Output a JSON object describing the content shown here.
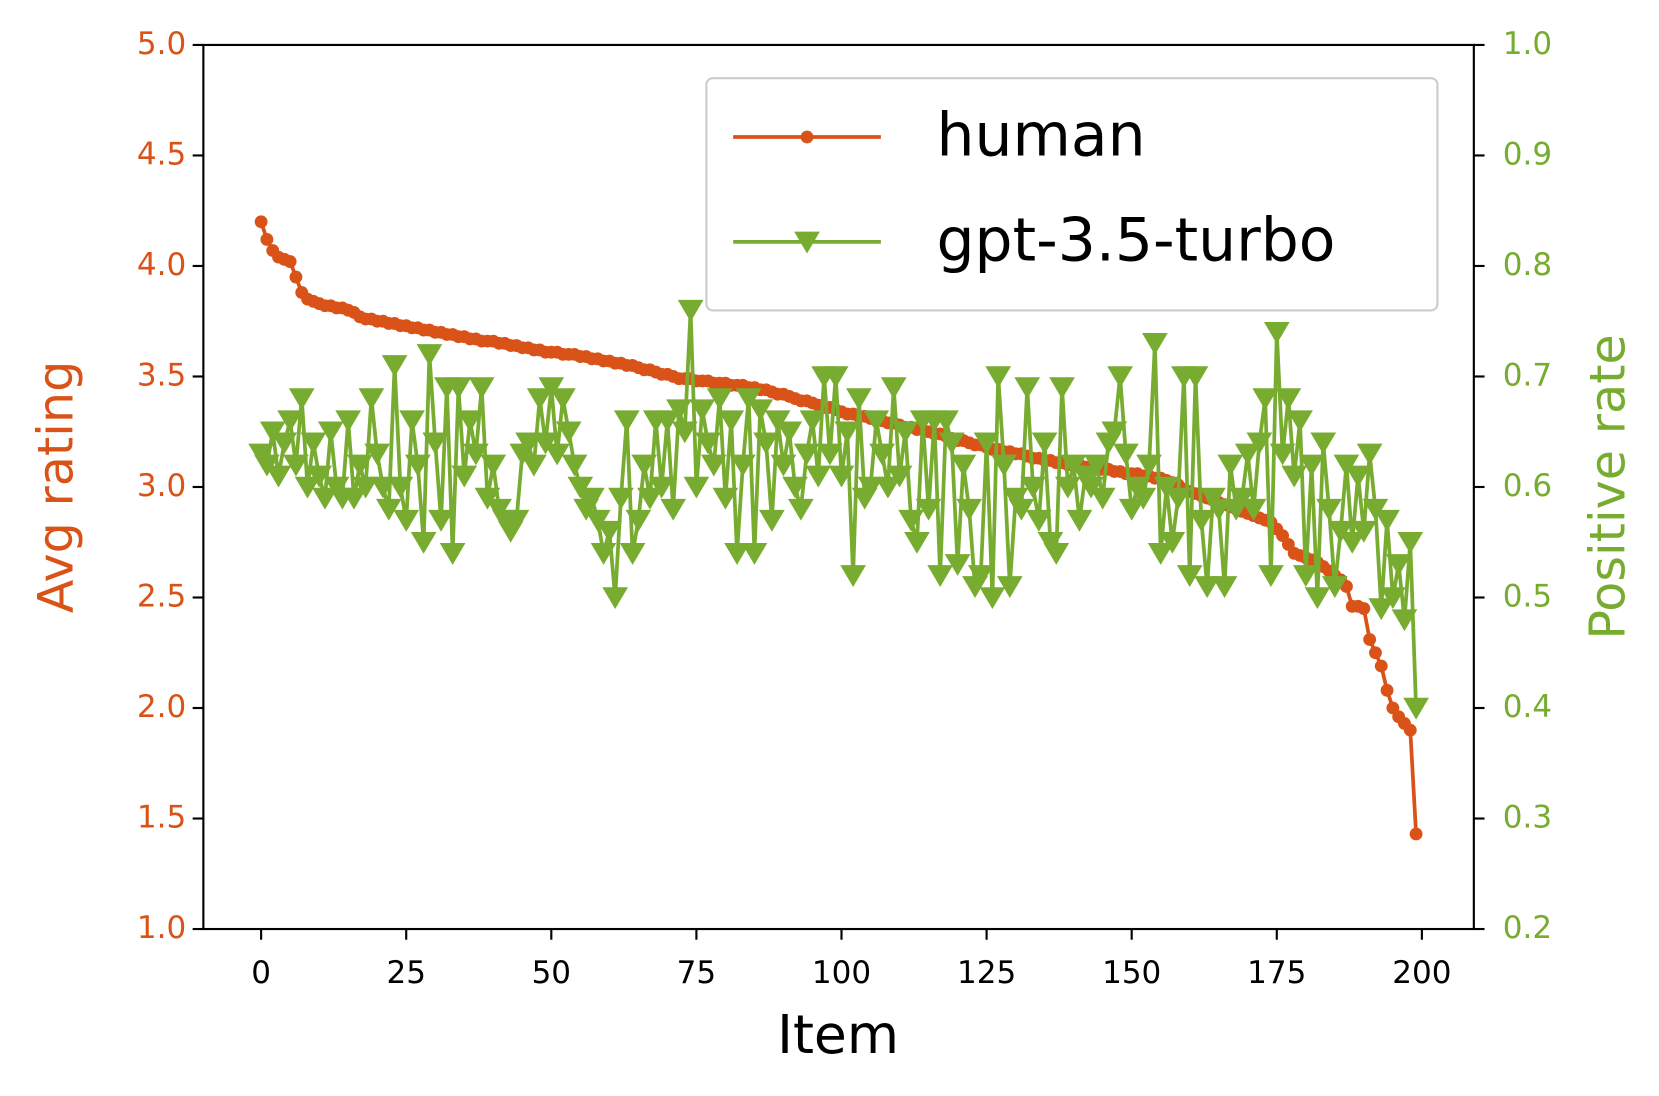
{
  "chart_data": {
    "type": "line",
    "xlabel": "Item",
    "ylabel": "Avg rating",
    "y2label": "Positive rate",
    "xlim": [
      -9.95,
      208.95
    ],
    "xticks": [
      0,
      25,
      50,
      75,
      100,
      125,
      150,
      175,
      200
    ],
    "ylim": [
      1,
      5
    ],
    "yticks": [
      {
        "value": 1,
        "label": "1.0"
      },
      {
        "value": 1.5,
        "label": "1.5"
      },
      {
        "value": 2,
        "label": "2.0"
      },
      {
        "value": 2.5,
        "label": "2.5"
      },
      {
        "value": 3,
        "label": "3.0"
      },
      {
        "value": 3.5,
        "label": "3.5"
      },
      {
        "value": 4,
        "label": "4.0"
      },
      {
        "value": 4.5,
        "label": "4.5"
      },
      {
        "value": 5,
        "label": "5.0"
      }
    ],
    "y2lim": [
      0.2,
      1.0
    ],
    "y2ticks": [
      0.2,
      0.3,
      0.4,
      0.5,
      0.6,
      0.7,
      0.8,
      0.9,
      {
        "value": 1.0,
        "label": "1.0"
      }
    ],
    "ycolor": "#d95319",
    "y2color": "#77ac30",
    "legend": "upper right",
    "grid": false,
    "x": [
      0,
      1,
      2,
      3,
      4,
      5,
      6,
      7,
      8,
      9,
      10,
      11,
      12,
      13,
      14,
      15,
      16,
      17,
      18,
      19,
      20,
      21,
      22,
      23,
      24,
      25,
      26,
      27,
      28,
      29,
      30,
      31,
      32,
      33,
      34,
      35,
      36,
      37,
      38,
      39,
      40,
      41,
      42,
      43,
      44,
      45,
      46,
      47,
      48,
      49,
      50,
      51,
      52,
      53,
      54,
      55,
      56,
      57,
      58,
      59,
      60,
      61,
      62,
      63,
      64,
      65,
      66,
      67,
      68,
      69,
      70,
      71,
      72,
      73,
      74,
      75,
      76,
      77,
      78,
      79,
      80,
      81,
      82,
      83,
      84,
      85,
      86,
      87,
      88,
      89,
      90,
      91,
      92,
      93,
      94,
      95,
      96,
      97,
      98,
      99,
      100,
      101,
      102,
      103,
      104,
      105,
      106,
      107,
      108,
      109,
      110,
      111,
      112,
      113,
      114,
      115,
      116,
      117,
      118,
      119,
      120,
      121,
      122,
      123,
      124,
      125,
      126,
      127,
      128,
      129,
      130,
      131,
      132,
      133,
      134,
      135,
      136,
      137,
      138,
      139,
      140,
      141,
      142,
      143,
      144,
      145,
      146,
      147,
      148,
      149,
      150,
      151,
      152,
      153,
      154,
      155,
      156,
      157,
      158,
      159,
      160,
      161,
      162,
      163,
      164,
      165,
      166,
      167,
      168,
      169,
      170,
      171,
      172,
      173,
      174,
      175,
      176,
      177,
      178,
      179,
      180,
      181,
      182,
      183,
      184,
      185,
      186,
      187,
      188,
      189,
      190,
      191,
      192,
      193,
      194,
      195,
      196,
      197,
      198,
      199
    ],
    "series": [
      {
        "name": "human",
        "color": "#d95319",
        "marker": "circle",
        "axis": "y",
        "values": [
          4.2,
          4.12,
          4.07,
          4.04,
          4.03,
          4.02,
          3.95,
          3.88,
          3.85,
          3.84,
          3.83,
          3.82,
          3.82,
          3.81,
          3.81,
          3.8,
          3.79,
          3.77,
          3.76,
          3.76,
          3.75,
          3.75,
          3.74,
          3.74,
          3.73,
          3.73,
          3.72,
          3.72,
          3.71,
          3.71,
          3.7,
          3.7,
          3.69,
          3.69,
          3.68,
          3.68,
          3.67,
          3.67,
          3.66,
          3.66,
          3.66,
          3.65,
          3.65,
          3.64,
          3.64,
          3.63,
          3.63,
          3.62,
          3.62,
          3.61,
          3.61,
          3.61,
          3.6,
          3.6,
          3.6,
          3.59,
          3.59,
          3.58,
          3.58,
          3.57,
          3.57,
          3.56,
          3.56,
          3.55,
          3.55,
          3.54,
          3.53,
          3.53,
          3.52,
          3.51,
          3.51,
          3.5,
          3.49,
          3.49,
          3.49,
          3.48,
          3.48,
          3.48,
          3.47,
          3.47,
          3.47,
          3.46,
          3.46,
          3.46,
          3.45,
          3.45,
          3.44,
          3.44,
          3.43,
          3.42,
          3.42,
          3.41,
          3.4,
          3.39,
          3.39,
          3.38,
          3.37,
          3.36,
          3.36,
          3.35,
          3.34,
          3.33,
          3.33,
          3.32,
          3.32,
          3.31,
          3.3,
          3.3,
          3.29,
          3.29,
          3.28,
          3.27,
          3.27,
          3.26,
          3.26,
          3.25,
          3.24,
          3.24,
          3.23,
          3.22,
          3.21,
          3.21,
          3.2,
          3.19,
          3.19,
          3.18,
          3.17,
          3.17,
          3.16,
          3.16,
          3.15,
          3.15,
          3.14,
          3.13,
          3.13,
          3.12,
          3.12,
          3.11,
          3.11,
          3.1,
          3.1,
          3.1,
          3.09,
          3.09,
          3.08,
          3.08,
          3.08,
          3.07,
          3.07,
          3.06,
          3.06,
          3.06,
          3.05,
          3.05,
          3.04,
          3.04,
          3.03,
          3.02,
          3.01,
          2.99,
          2.98,
          2.97,
          2.96,
          2.95,
          2.94,
          2.93,
          2.92,
          2.91,
          2.9,
          2.89,
          2.88,
          2.87,
          2.86,
          2.85,
          2.84,
          2.81,
          2.78,
          2.74,
          2.7,
          2.69,
          2.68,
          2.67,
          2.66,
          2.64,
          2.62,
          2.6,
          2.58,
          2.55,
          2.46,
          2.46,
          2.45,
          2.31,
          2.25,
          2.19,
          2.08,
          2.0,
          1.96,
          1.93,
          1.9,
          1.43
        ]
      },
      {
        "name": "gpt-3.5-turbo",
        "color": "#77ac30",
        "marker": "triangle-down",
        "axis": "y2",
        "values": [
          0.63,
          0.62,
          0.65,
          0.61,
          0.64,
          0.66,
          0.62,
          0.68,
          0.6,
          0.64,
          0.61,
          0.59,
          0.65,
          0.6,
          0.59,
          0.66,
          0.59,
          0.62,
          0.6,
          0.68,
          0.63,
          0.6,
          0.58,
          0.71,
          0.6,
          0.57,
          0.66,
          0.62,
          0.55,
          0.72,
          0.64,
          0.57,
          0.69,
          0.54,
          0.69,
          0.61,
          0.66,
          0.63,
          0.69,
          0.59,
          0.62,
          0.58,
          0.57,
          0.56,
          0.57,
          0.63,
          0.64,
          0.62,
          0.68,
          0.64,
          0.69,
          0.63,
          0.68,
          0.65,
          0.62,
          0.6,
          0.58,
          0.59,
          0.57,
          0.54,
          0.56,
          0.5,
          0.59,
          0.66,
          0.54,
          0.57,
          0.62,
          0.59,
          0.66,
          0.6,
          0.66,
          0.58,
          0.67,
          0.65,
          0.76,
          0.6,
          0.67,
          0.64,
          0.62,
          0.68,
          0.59,
          0.66,
          0.54,
          0.62,
          0.68,
          0.54,
          0.67,
          0.64,
          0.57,
          0.66,
          0.62,
          0.65,
          0.6,
          0.58,
          0.63,
          0.66,
          0.61,
          0.7,
          0.63,
          0.7,
          0.61,
          0.65,
          0.52,
          0.68,
          0.59,
          0.6,
          0.66,
          0.63,
          0.6,
          0.69,
          0.61,
          0.65,
          0.57,
          0.55,
          0.66,
          0.58,
          0.66,
          0.52,
          0.66,
          0.64,
          0.53,
          0.62,
          0.58,
          0.51,
          0.52,
          0.64,
          0.5,
          0.7,
          0.62,
          0.51,
          0.59,
          0.58,
          0.69,
          0.6,
          0.57,
          0.64,
          0.55,
          0.54,
          0.69,
          0.6,
          0.62,
          0.57,
          0.61,
          0.6,
          0.62,
          0.59,
          0.64,
          0.65,
          0.7,
          0.63,
          0.58,
          0.6,
          0.59,
          0.62,
          0.73,
          0.54,
          0.6,
          0.55,
          0.59,
          0.7,
          0.52,
          0.7,
          0.57,
          0.51,
          0.59,
          0.58,
          0.51,
          0.62,
          0.58,
          0.59,
          0.63,
          0.58,
          0.64,
          0.68,
          0.52,
          0.74,
          0.63,
          0.68,
          0.61,
          0.66,
          0.52,
          0.62,
          0.5,
          0.64,
          0.58,
          0.51,
          0.56,
          0.62,
          0.55,
          0.61,
          0.56,
          0.63,
          0.58,
          0.49,
          0.57,
          0.5,
          0.53,
          0.48,
          0.55,
          0.4
        ]
      }
    ]
  }
}
